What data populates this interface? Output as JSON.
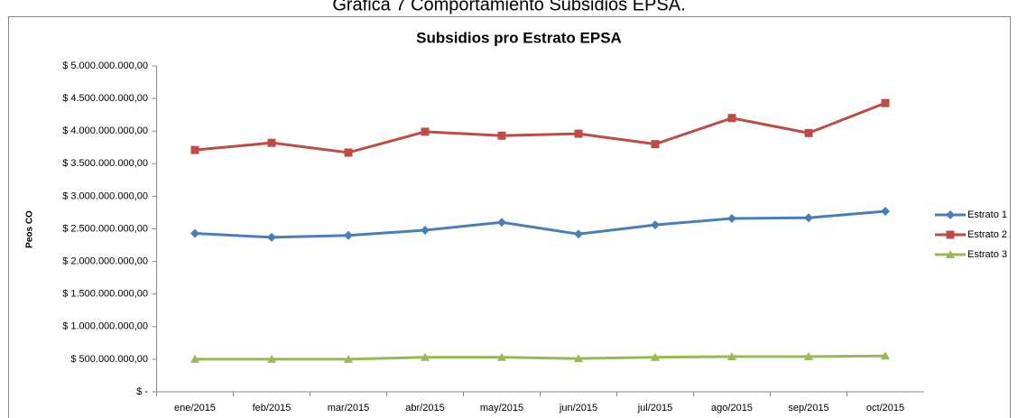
{
  "caption": "Gráfica 7 Comportamiento Subsidios EPSA.",
  "chart_data": {
    "type": "line",
    "title": "Subsidios pro Estrato EPSA",
    "y_label": "Peos CO",
    "categories": [
      "ene/2015",
      "feb/2015",
      "mar/2015",
      "abr/2015",
      "may/2015",
      "jun/2015",
      "jul/2015",
      "ago/2015",
      "sep/2015",
      "oct/2015"
    ],
    "series": [
      {
        "name": "Estrato 1",
        "color": "#4a7ebb",
        "marker": "diamond",
        "values": [
          2430000000,
          2370000000,
          2400000000,
          2480000000,
          2600000000,
          2420000000,
          2560000000,
          2660000000,
          2670000000,
          2770000000
        ]
      },
      {
        "name": "Estrato 2",
        "color": "#be4b48",
        "marker": "square",
        "values": [
          3710000000,
          3820000000,
          3670000000,
          3990000000,
          3930000000,
          3960000000,
          3800000000,
          4200000000,
          3970000000,
          4430000000
        ]
      },
      {
        "name": "Estrato 3",
        "color": "#98b954",
        "marker": "triangle",
        "values": [
          500000000,
          500000000,
          500000000,
          530000000,
          530000000,
          510000000,
          530000000,
          540000000,
          540000000,
          550000000
        ]
      }
    ],
    "ylim": [
      0,
      5000000000
    ],
    "yticks": [
      {
        "value": 0,
        "label": "$ -"
      },
      {
        "value": 500000000,
        "label": "$ 500.000.000,00"
      },
      {
        "value": 1000000000,
        "label": "$ 1.000.000.000,00"
      },
      {
        "value": 1500000000,
        "label": "$ 1.500.000.000,00"
      },
      {
        "value": 2000000000,
        "label": "$ 2.000.000.000,00"
      },
      {
        "value": 2500000000,
        "label": "$ 2.500.000.000,00"
      },
      {
        "value": 3000000000,
        "label": "$ 3.000.000.000,00"
      },
      {
        "value": 3500000000,
        "label": "$ 3.500.000.000,00"
      },
      {
        "value": 4000000000,
        "label": "$ 4.000.000.000,00"
      },
      {
        "value": 4500000000,
        "label": "$ 4.500.000.000,00"
      },
      {
        "value": 5000000000,
        "label": "$ 5.000.000.000,00"
      }
    ],
    "grid": false,
    "legend": "right"
  }
}
